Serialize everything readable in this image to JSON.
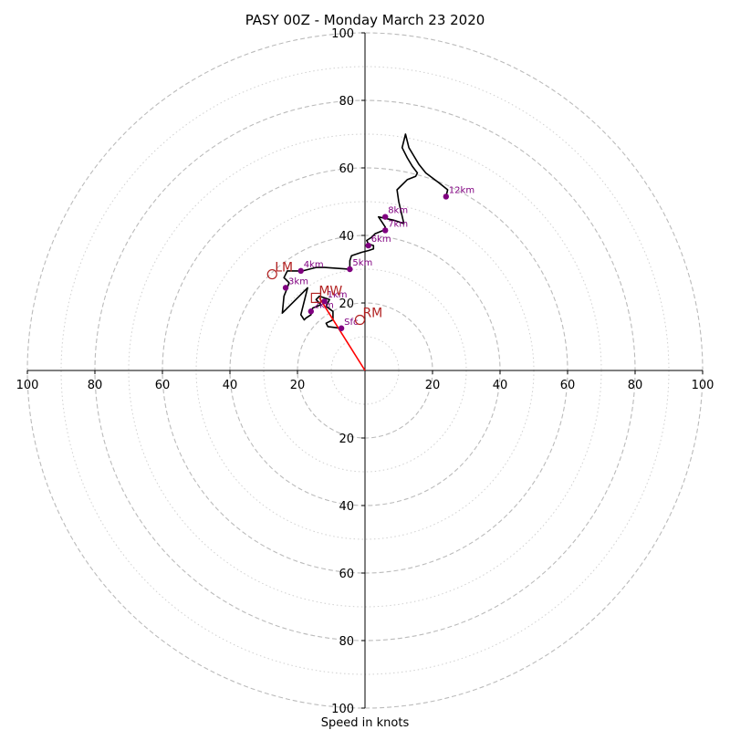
{
  "chart_data": {
    "type": "scatter",
    "subtype": "hodograph",
    "title": "PASY 00Z - Monday March 23 2020",
    "xlabel": "Speed in knots",
    "range": [
      -100,
      100
    ],
    "xlim": [
      -100,
      100
    ],
    "ylim": [
      -100,
      100
    ],
    "grid": true,
    "dashed_rings": [
      20,
      40,
      60,
      80,
      100
    ],
    "dotted_rings": [
      10,
      30,
      50,
      70,
      90
    ],
    "x_ticks": [
      {
        "value": -100,
        "label": "100"
      },
      {
        "value": -80,
        "label": "80"
      },
      {
        "value": -60,
        "label": "60"
      },
      {
        "value": -40,
        "label": "40"
      },
      {
        "value": -20,
        "label": "20"
      },
      {
        "value": 20,
        "label": "20"
      },
      {
        "value": 40,
        "label": "40"
      },
      {
        "value": 60,
        "label": "60"
      },
      {
        "value": 80,
        "label": "80"
      },
      {
        "value": 100,
        "label": "100"
      }
    ],
    "y_ticks": [
      {
        "value": 100,
        "label": "100"
      },
      {
        "value": 80,
        "label": "80"
      },
      {
        "value": 60,
        "label": "60"
      },
      {
        "value": 40,
        "label": "40"
      },
      {
        "value": 20,
        "label": "20"
      },
      {
        "value": -20,
        "label": "20"
      },
      {
        "value": -40,
        "label": "40"
      },
      {
        "value": -60,
        "label": "60"
      },
      {
        "value": -80,
        "label": "80"
      },
      {
        "value": -100,
        "label": "100"
      }
    ],
    "hodograph_line": {
      "color": "#000000",
      "points": [
        [
          -7.0,
          12.5
        ],
        [
          -11.0,
          13.0
        ],
        [
          -11.5,
          14.0
        ],
        [
          -9.5,
          15.0
        ],
        [
          -9.5,
          17.5
        ],
        [
          -11.5,
          19.0
        ],
        [
          -10.5,
          21.0
        ],
        [
          -13.5,
          22.0
        ],
        [
          -14.5,
          21.0
        ],
        [
          -13.0,
          19.5
        ],
        [
          -15.5,
          18.5
        ],
        [
          -16.0,
          16.5
        ],
        [
          -17.5,
          15.5
        ],
        [
          -18.0,
          15.0
        ],
        [
          -19.0,
          16.5
        ],
        [
          -17.0,
          24.5
        ],
        [
          -24.5,
          17.0
        ],
        [
          -24.0,
          22.0
        ],
        [
          -23.0,
          24.5
        ],
        [
          -22.5,
          26.0
        ],
        [
          -23.5,
          27.0
        ],
        [
          -24.0,
          27.5
        ],
        [
          -23.0,
          29.5
        ],
        [
          -18.5,
          29.5
        ],
        [
          -14.5,
          30.5
        ],
        [
          -12.0,
          30.5
        ],
        [
          -4.5,
          30.0
        ],
        [
          -4.5,
          32.5
        ],
        [
          -4.0,
          34.0
        ],
        [
          -1.0,
          35.0
        ],
        [
          1.0,
          35.5
        ],
        [
          2.5,
          36.0
        ],
        [
          2.5,
          37.0
        ],
        [
          1.0,
          37.5
        ],
        [
          0.5,
          38.5
        ],
        [
          2.0,
          39.5
        ],
        [
          3.0,
          40.5
        ],
        [
          5.5,
          41.5
        ],
        [
          6.0,
          42.5
        ],
        [
          5.0,
          44.0
        ],
        [
          4.0,
          45.5
        ],
        [
          8.5,
          44.5
        ],
        [
          11.5,
          43.5
        ],
        [
          10.0,
          50.0
        ],
        [
          9.5,
          53.5
        ],
        [
          12.5,
          56.5
        ],
        [
          15.0,
          57.5
        ],
        [
          15.5,
          58.5
        ],
        [
          14.0,
          60.5
        ],
        [
          12.5,
          63.0
        ],
        [
          11.0,
          66.0
        ],
        [
          12.0,
          70.0
        ],
        [
          13.0,
          66.0
        ],
        [
          14.5,
          63.5
        ],
        [
          16.0,
          61.0
        ],
        [
          18.0,
          58.5
        ],
        [
          22.0,
          55.5
        ],
        [
          24.5,
          53.5
        ],
        [
          24.0,
          51.5
        ]
      ]
    },
    "height_markers": [
      {
        "label": "Sfc",
        "u": -7.0,
        "v": 12.5
      },
      {
        "label": "1km",
        "u": -12.0,
        "v": 20.5
      },
      {
        "label": "2km",
        "u": -16.0,
        "v": 17.5
      },
      {
        "label": "3km",
        "u": -23.5,
        "v": 24.5
      },
      {
        "label": "4km",
        "u": -19.0,
        "v": 29.5
      },
      {
        "label": "5km",
        "u": -4.5,
        "v": 30.0
      },
      {
        "label": "6km",
        "u": 1.0,
        "v": 37.0
      },
      {
        "label": "7km",
        "u": 6.0,
        "v": 41.5
      },
      {
        "label": "8km",
        "u": 6.0,
        "v": 45.5
      },
      {
        "label": "12km",
        "u": 24.0,
        "v": 51.5
      }
    ],
    "mean_wind_vector": {
      "color": "#ff0000",
      "from": [
        0,
        0
      ],
      "to": [
        -13.5,
        21.5
      ]
    },
    "motion_markers": [
      {
        "label": "LM",
        "shape": "circle",
        "u": -27.5,
        "v": 28.5
      },
      {
        "label": "MW",
        "shape": "square",
        "u": -14.5,
        "v": 21.5
      },
      {
        "label": "RM",
        "shape": "circle",
        "u": -1.5,
        "v": 15.0
      }
    ],
    "colors": {
      "hodograph": "#000000",
      "height_marker": "#800080",
      "motion_marker": "#b22222",
      "vector": "#ff0000",
      "grid": "#bbbbbb"
    }
  }
}
